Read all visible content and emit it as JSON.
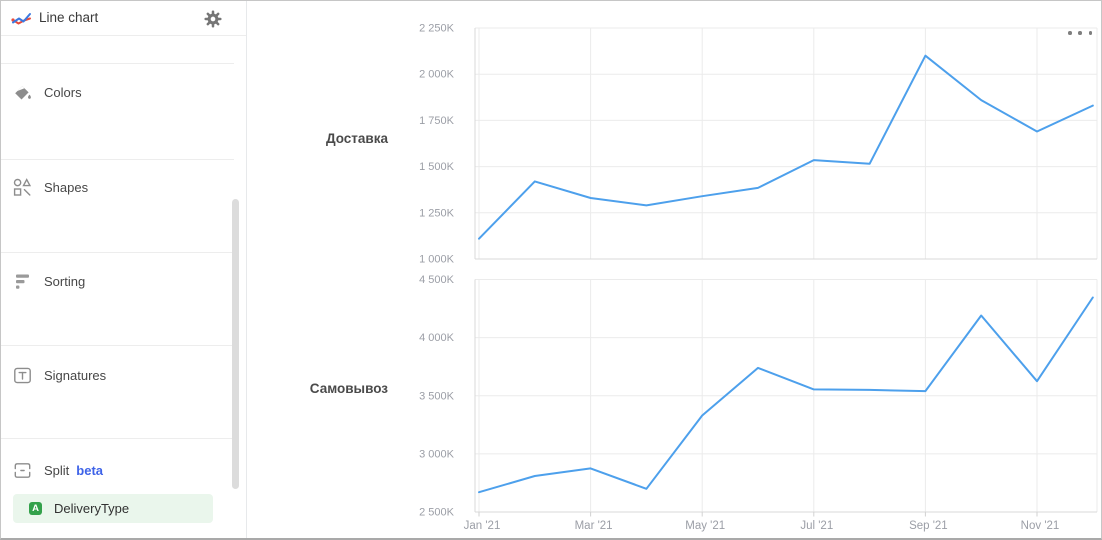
{
  "sidebar": {
    "header": {
      "title": "Line chart",
      "chart_type_icon": "line-chart-icon",
      "settings_icon": "gear-icon"
    },
    "items": [
      {
        "icon": "paint-bucket-icon",
        "label": "Colors"
      },
      {
        "icon": "shapes-icon",
        "label": "Shapes"
      },
      {
        "icon": "sorting-icon",
        "label": "Sorting"
      },
      {
        "icon": "signature-icon",
        "label": "Signatures"
      },
      {
        "icon": "split-icon",
        "label": "Split",
        "badge": "beta"
      }
    ],
    "split_field": {
      "type_badge": "A",
      "label": "DeliveryType"
    }
  },
  "chart_menu_icon": "ellipsis-menu",
  "colors": {
    "series_line": "#4da0ec",
    "beta_text": "#3e63e8",
    "field_badge_green": "#33a14b",
    "field_pill_bg": "#eaf6ec",
    "grid_line": "#ebebeb",
    "axis_line": "#d9d9d9",
    "tick_text": "#9b9ea6"
  },
  "chart_data": [
    {
      "type": "line",
      "row_label": "Доставка",
      "x": [
        "Jan '21",
        "Feb '21",
        "Mar '21",
        "Apr '21",
        "May '21",
        "Jun '21",
        "Jul '21",
        "Aug '21",
        "Sep '21",
        "Oct '21",
        "Nov '21",
        "Dec '21"
      ],
      "values": [
        1110,
        1420,
        1330,
        1290,
        1340,
        1385,
        1535,
        1515,
        2100,
        1860,
        1690,
        1830
      ],
      "value_unit": "K",
      "ylim": [
        1000,
        2250
      ],
      "ytick_values": [
        1000,
        1250,
        1500,
        1750,
        2000,
        2250
      ],
      "ytick_labels": [
        "1 000K",
        "1 250K",
        "1 500K",
        "1 750K",
        "2 000K",
        "2 250K"
      ],
      "grid": true,
      "legend": "none"
    },
    {
      "type": "line",
      "row_label": "Самовывоз",
      "x": [
        "Jan '21",
        "Feb '21",
        "Mar '21",
        "Apr '21",
        "May '21",
        "Jun '21",
        "Jul '21",
        "Aug '21",
        "Sep '21",
        "Oct '21",
        "Nov '21",
        "Dec '21"
      ],
      "values": [
        2670,
        2810,
        2875,
        2700,
        3330,
        3740,
        3555,
        3550,
        3540,
        4190,
        3625,
        4345
      ],
      "value_unit": "K",
      "ylim": [
        2500,
        4500
      ],
      "ytick_values": [
        2500,
        3000,
        3500,
        4000,
        4500
      ],
      "ytick_labels": [
        "2 500K",
        "3 000K",
        "3 500K",
        "4 000K",
        "4 500K"
      ],
      "grid": true,
      "legend": "none"
    }
  ],
  "x_axis": {
    "tick_labels": [
      "Jan '21",
      "Mar '21",
      "May '21",
      "Jul '21",
      "Sep '21",
      "Nov '21"
    ],
    "tick_month_indices": [
      0,
      2,
      4,
      6,
      8,
      10
    ]
  }
}
